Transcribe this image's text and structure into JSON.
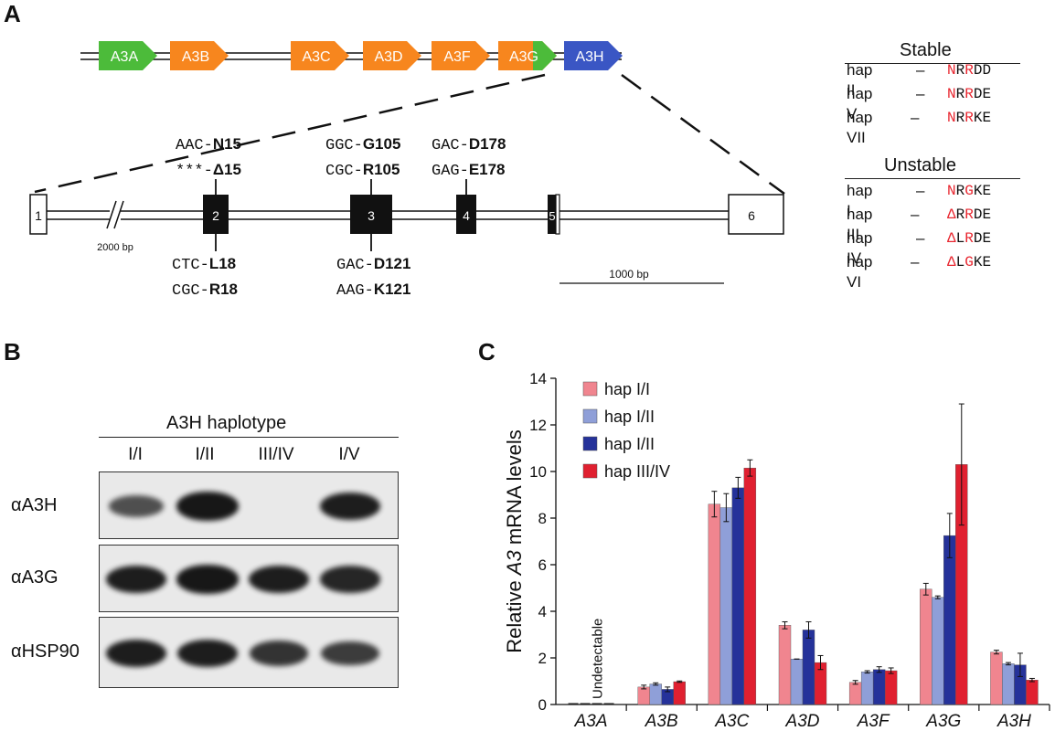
{
  "panels": {
    "a": "A",
    "b": "B",
    "c": "C"
  },
  "genes": [
    {
      "label": "A3A",
      "color": "#4cbb3a"
    },
    {
      "label": "A3B",
      "color": "#f7861e"
    },
    {
      "label": "A3C",
      "color": "#f7861e"
    },
    {
      "label": "A3D",
      "color": "#f7861e"
    },
    {
      "label": "A3F",
      "color": "#f7861e"
    },
    {
      "label": "A3G",
      "color": "#f7861e"
    },
    {
      "label": "A3H",
      "color": "#3a56c4"
    }
  ],
  "exons": [
    "1",
    "2",
    "3",
    "4",
    "5",
    "6"
  ],
  "gap_label": "2000 bp",
  "scale_label": "1000 bp",
  "variants_top": {
    "exon2": [
      {
        "codon": "AAC-",
        "aa": "N15"
      },
      {
        "codon": "***-",
        "aa": "Δ15"
      }
    ],
    "exon3": [
      {
        "codon": "GGC-",
        "aa": "G105"
      },
      {
        "codon": "CGC-",
        "aa": "R105"
      }
    ],
    "exon4": [
      {
        "codon": "GAC-",
        "aa": "D178"
      },
      {
        "codon": "GAG-",
        "aa": "E178"
      }
    ]
  },
  "variants_bottom": {
    "exon2": [
      {
        "codon": "CTC-",
        "aa": "L18"
      },
      {
        "codon": "CGC-",
        "aa": "R18"
      }
    ],
    "exon3": [
      {
        "codon": "GAC-",
        "aa": "D121"
      },
      {
        "codon": "AAG-",
        "aa": "K121"
      }
    ]
  },
  "stable": {
    "title": "Stable",
    "rows": [
      {
        "name": "hap II",
        "dash": "–",
        "seq": [
          {
            "c": "N",
            "red": true
          },
          {
            "c": "R",
            "red": false
          },
          {
            "c": "R",
            "red": true
          },
          {
            "c": "D",
            "red": false
          },
          {
            "c": "D",
            "red": false
          }
        ]
      },
      {
        "name": "hap V",
        "dash": "–",
        "seq": [
          {
            "c": "N",
            "red": true
          },
          {
            "c": "R",
            "red": false
          },
          {
            "c": "R",
            "red": true
          },
          {
            "c": "D",
            "red": false
          },
          {
            "c": "E",
            "red": false
          }
        ]
      },
      {
        "name": "hap VII",
        "dash": "–",
        "seq": [
          {
            "c": "N",
            "red": true
          },
          {
            "c": "R",
            "red": false
          },
          {
            "c": "R",
            "red": true
          },
          {
            "c": "K",
            "red": false
          },
          {
            "c": "E",
            "red": false
          }
        ]
      }
    ]
  },
  "unstable": {
    "title": "Unstable",
    "rows": [
      {
        "name": "hap I",
        "dash": "–",
        "seq": [
          {
            "c": "N",
            "red": true
          },
          {
            "c": "R",
            "red": false
          },
          {
            "c": "G",
            "red": true
          },
          {
            "c": "K",
            "red": false
          },
          {
            "c": "E",
            "red": false
          }
        ]
      },
      {
        "name": "hap III",
        "dash": "–",
        "seq": [
          {
            "c": "Δ",
            "red": true
          },
          {
            "c": "R",
            "red": false
          },
          {
            "c": "R",
            "red": true
          },
          {
            "c": "D",
            "red": false
          },
          {
            "c": "E",
            "red": false
          }
        ]
      },
      {
        "name": "hap IV",
        "dash": "–",
        "seq": [
          {
            "c": "Δ",
            "red": true
          },
          {
            "c": "L",
            "red": false
          },
          {
            "c": "R",
            "red": true
          },
          {
            "c": "D",
            "red": false
          },
          {
            "c": "E",
            "red": false
          }
        ]
      },
      {
        "name": "hap  VI",
        "dash": "–",
        "seq": [
          {
            "c": "Δ",
            "red": true
          },
          {
            "c": "L",
            "red": false
          },
          {
            "c": "G",
            "red": true
          },
          {
            "c": "K",
            "red": false
          },
          {
            "c": "E",
            "red": false
          }
        ]
      }
    ]
  },
  "blot": {
    "header": "A3H haplotype",
    "lanes": [
      "I/I",
      "I/II",
      "III/IV",
      "I/V"
    ],
    "rows": [
      {
        "label": "αA3H",
        "intensity": [
          0.55,
          0.95,
          0.0,
          0.9
        ]
      },
      {
        "label": "αA3G",
        "intensity": [
          0.9,
          0.95,
          0.9,
          0.85
        ]
      },
      {
        "label": "αHSP90",
        "intensity": [
          0.9,
          0.9,
          0.75,
          0.7
        ]
      }
    ]
  },
  "chart_data": {
    "type": "bar",
    "ylabel_pre": "Relative ",
    "ylabel_ital": "A3",
    "ylabel_post": " mRNA levels",
    "ylim": [
      0,
      14
    ],
    "yticks": [
      0,
      2,
      4,
      6,
      8,
      10,
      12,
      14
    ],
    "categories": [
      "A3A",
      "A3B",
      "A3C",
      "A3D",
      "A3F",
      "A3G",
      "A3H"
    ],
    "annotation": "Undetectable",
    "legend_position": "top-left",
    "series": [
      {
        "name": "hap I/I",
        "color": "#f0858f",
        "values": [
          0,
          0.75,
          8.6,
          3.4,
          0.95,
          4.95,
          2.25
        ],
        "errors": [
          0,
          0.08,
          0.55,
          0.15,
          0.08,
          0.25,
          0.08
        ]
      },
      {
        "name": "hap I/II",
        "color": "#8f9fd8",
        "values": [
          0,
          0.88,
          8.45,
          1.95,
          1.4,
          4.6,
          1.75
        ],
        "errors": [
          0,
          0.05,
          0.6,
          0.0,
          0.05,
          0.06,
          0.05
        ]
      },
      {
        "name": "hap I/II",
        "color": "#25329a",
        "values": [
          0,
          0.65,
          9.3,
          3.2,
          1.5,
          7.25,
          1.7
        ],
        "errors": [
          0,
          0.1,
          0.45,
          0.35,
          0.12,
          0.95,
          0.5
        ]
      },
      {
        "name": "hap III/IV",
        "color": "#e02030",
        "values": [
          0,
          0.98,
          10.15,
          1.8,
          1.45,
          10.3,
          1.05
        ],
        "errors": [
          0,
          0.03,
          0.35,
          0.3,
          0.12,
          2.6,
          0.07
        ]
      }
    ]
  }
}
